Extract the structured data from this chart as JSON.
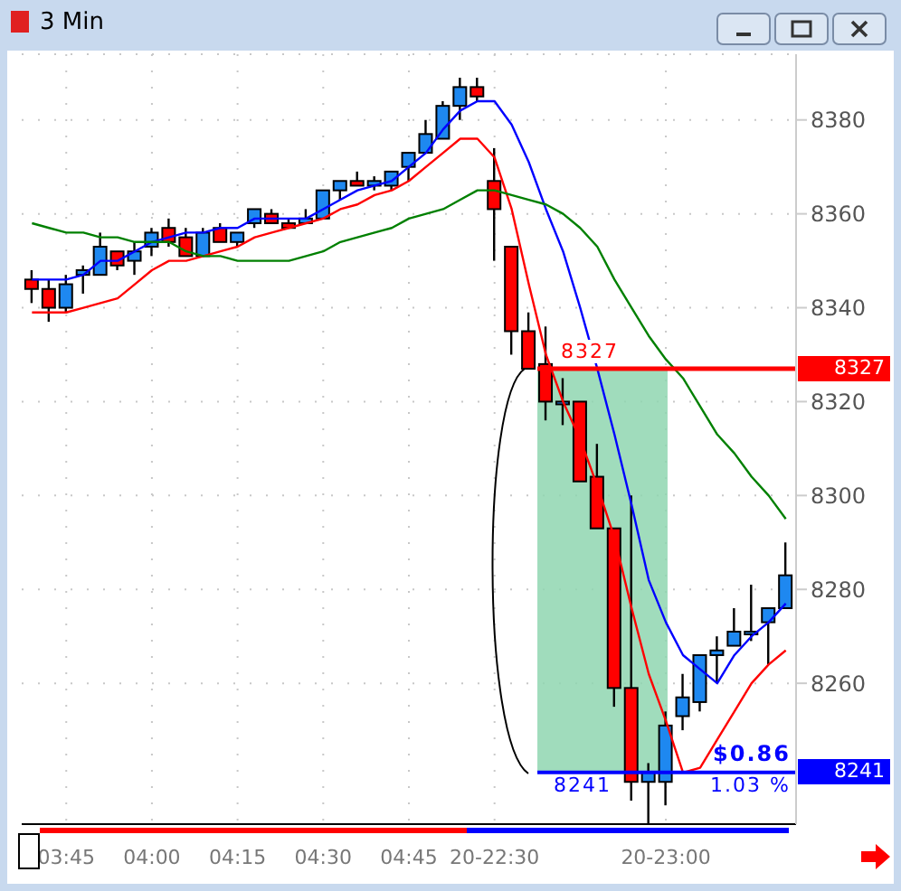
{
  "chart_data": {
    "type": "candlestick",
    "title": "3 Min",
    "categories": [
      null,
      null,
      "03:45",
      null,
      null,
      null,
      null,
      "04:00",
      null,
      null,
      null,
      null,
      "04:15",
      null,
      null,
      null,
      null,
      "04:30",
      null,
      null,
      null,
      null,
      "04:45",
      null,
      null,
      null,
      null,
      "20-22:30",
      null,
      null,
      null,
      null,
      null,
      null,
      null,
      null,
      null,
      "20-23:00",
      null,
      null,
      null,
      null,
      null,
      null,
      null
    ],
    "ohlc": [
      [
        8346,
        8348,
        8341,
        8344
      ],
      [
        8344,
        8346,
        8337,
        8340
      ],
      [
        8340,
        8347,
        8339,
        8345
      ],
      [
        8347,
        8349,
        8343,
        8348
      ],
      [
        8347,
        8356,
        8347,
        8353
      ],
      [
        8352,
        8352,
        8348,
        8349
      ],
      [
        8350,
        8354,
        8347,
        8352
      ],
      [
        8353,
        8357,
        8351,
        8356
      ],
      [
        8357,
        8359,
        8353,
        8354
      ],
      [
        8355,
        8357,
        8351,
        8351
      ],
      [
        8351,
        8357,
        8351,
        8356
      ],
      [
        8357,
        8358,
        8354,
        8354
      ],
      [
        8354,
        8356,
        8353,
        8356
      ],
      [
        8358,
        8361,
        8357,
        8361
      ],
      [
        8360,
        8361,
        8358,
        8358
      ],
      [
        8358,
        8359,
        8357,
        8357
      ],
      [
        8358,
        8361,
        8358,
        8359
      ],
      [
        8359,
        8365,
        8359,
        8365
      ],
      [
        8365,
        8367,
        8363,
        8367
      ],
      [
        8367,
        8369,
        8366,
        8366
      ],
      [
        8366,
        8368,
        8365,
        8367
      ],
      [
        8366,
        8369,
        8365,
        8369
      ],
      [
        8370,
        8373,
        8367,
        8373
      ],
      [
        8373,
        8380,
        8373,
        8377
      ],
      [
        8376,
        8384,
        8376,
        8383
      ],
      [
        8383,
        8389,
        8380,
        8387
      ],
      [
        8387,
        8389,
        8384,
        8385
      ],
      [
        8367,
        8374,
        8350,
        8361
      ],
      [
        8353,
        8353,
        8330,
        8335
      ],
      [
        8335,
        8339,
        8327,
        8327
      ],
      [
        8328,
        8336,
        8316,
        8320
      ],
      [
        8320,
        8325,
        8315,
        8320
      ],
      [
        8320,
        8320,
        8303,
        8303
      ],
      [
        8304,
        8311,
        8293,
        8293
      ],
      [
        8293,
        8293,
        8255,
        8259
      ],
      [
        8259,
        8300,
        8235,
        8239
      ],
      [
        8239,
        8243,
        8230,
        8241
      ],
      [
        8239,
        8254,
        8234,
        8251
      ],
      [
        8253,
        8262,
        8250,
        8257
      ],
      [
        8256,
        8266,
        8254,
        8266
      ],
      [
        8266,
        8270,
        8260,
        8267
      ],
      [
        8268,
        8276,
        8268,
        8271
      ],
      [
        8271,
        8281,
        8269,
        8271
      ],
      [
        8273,
        8276,
        8264,
        8276
      ],
      [
        8276,
        8290,
        8276,
        8283
      ]
    ],
    "colors": [
      "#ff0000",
      "#ff0000",
      "#1e88f0",
      "#1e88f0",
      "#1e88f0",
      "#ff0000",
      "#1e88f0",
      "#1e88f0",
      "#ff0000",
      "#ff0000",
      "#1e88f0",
      "#ff0000",
      "#1e88f0",
      "#1e88f0",
      "#ff0000",
      "#ff0000",
      "#1e88f0",
      "#1e88f0",
      "#1e88f0",
      "#ff0000",
      "#1e88f0",
      "#1e88f0",
      "#1e88f0",
      "#1e88f0",
      "#1e88f0",
      "#1e88f0",
      "#ff0000",
      "#ff0000",
      "#ff0000",
      "#ff0000",
      "#ff0000",
      "#1e88f0",
      "#ff0000",
      "#ff0000",
      "#ff0000",
      "#ff0000",
      "#1e88f0",
      "#1e88f0",
      "#1e88f0",
      "#1e88f0",
      "#1e88f0",
      "#1e88f0",
      "#1e88f0",
      "#1e88f0",
      "#1e88f0"
    ],
    "series": [
      {
        "type": "line",
        "color": "#0000ff",
        "values": [
          8346,
          8346,
          8346,
          8347,
          8350,
          8350,
          8352,
          8354,
          8355,
          8356,
          8356,
          8357,
          8357,
          8359,
          8359,
          8359,
          8359,
          8361,
          8363,
          8365,
          8366,
          8367,
          8370,
          8373,
          8378,
          8382,
          8384,
          8384,
          8379,
          8371,
          8361,
          8352,
          8340,
          8327,
          8313,
          8298,
          8282,
          8273,
          8266,
          8263,
          8260,
          8266,
          8270,
          8273,
          8277
        ]
      },
      {
        "type": "line",
        "color": "#ff0000",
        "values": [
          8339,
          8339,
          8339,
          8340,
          8341,
          8342,
          8345,
          8348,
          8350,
          8350,
          8351,
          8352,
          8353,
          8355,
          8356,
          8357,
          8358,
          8359,
          8361,
          8362,
          8364,
          8365,
          8367,
          8370,
          8373,
          8376,
          8376,
          8372,
          8361,
          8345,
          8330,
          8320,
          8312,
          8302,
          8291,
          8276,
          8262,
          8252,
          8241,
          8242,
          8248,
          8254,
          8260,
          8264,
          8267
        ]
      },
      {
        "type": "line",
        "color": "#008000",
        "values": [
          8358,
          8357,
          8356,
          8356,
          8355,
          8355,
          8354,
          8354,
          8354,
          8352,
          8351,
          8351,
          8350,
          8350,
          8350,
          8350,
          8351,
          8352,
          8354,
          8355,
          8356,
          8357,
          8359,
          8360,
          8361,
          8363,
          8365,
          8365,
          8364,
          8363,
          8362,
          8360,
          8357,
          8353,
          8346,
          8340,
          8334,
          8329,
          8325,
          8319,
          8313,
          8309,
          8304,
          8300,
          8295
        ]
      }
    ],
    "ylim": [
      8230,
      8394
    ],
    "yticks": [
      8260,
      8280,
      8300,
      8320,
      8340,
      8360,
      8380
    ],
    "grid": true,
    "ref_lines": [
      {
        "axis": "y",
        "value": 8327,
        "label": "8327",
        "color": "#ff0000"
      },
      {
        "axis": "y",
        "value": 8241,
        "label": "8241",
        "color": "#0000ff"
      }
    ],
    "bands": [
      {
        "axis": "y",
        "from": 8241,
        "to": 8327,
        "color": "#8fd6b0"
      }
    ],
    "annotations": [
      "$0.86",
      "1.03 %"
    ]
  }
}
